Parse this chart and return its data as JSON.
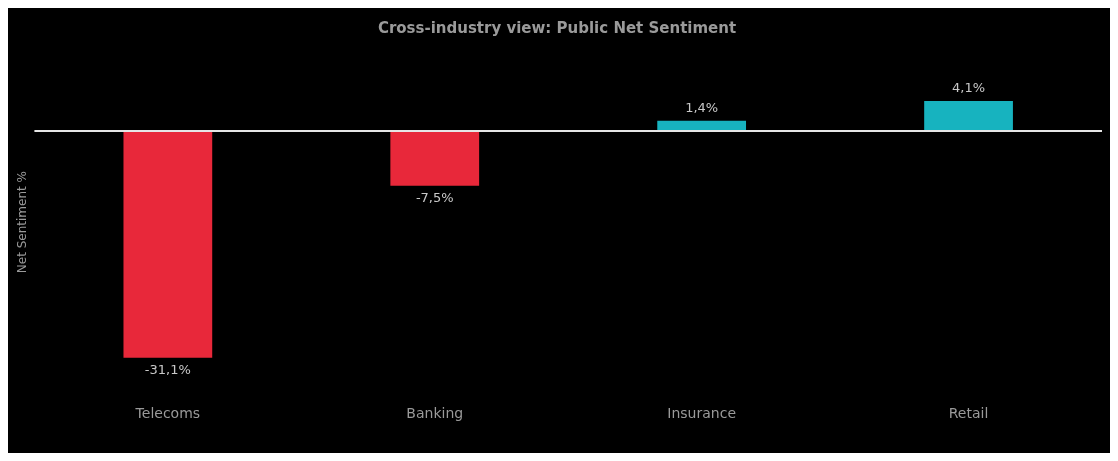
{
  "chart_data": {
    "type": "bar",
    "title": "Cross-industry view: Public Net Sentiment",
    "ylabel": "Net Sentiment %",
    "categories": [
      "Telecoms",
      "Banking",
      "Insurance",
      "Retail"
    ],
    "values": [
      -31.1,
      -7.5,
      1.4,
      4.1
    ],
    "colors": [
      "#e8283a",
      "#e8283a",
      "#17b3bf",
      "#17b3bf"
    ],
    "value_labels": [
      "-31,1%",
      "-7,5%",
      "1,4%",
      "4,1%"
    ],
    "tick_labels": "x",
    "legend": false
  }
}
